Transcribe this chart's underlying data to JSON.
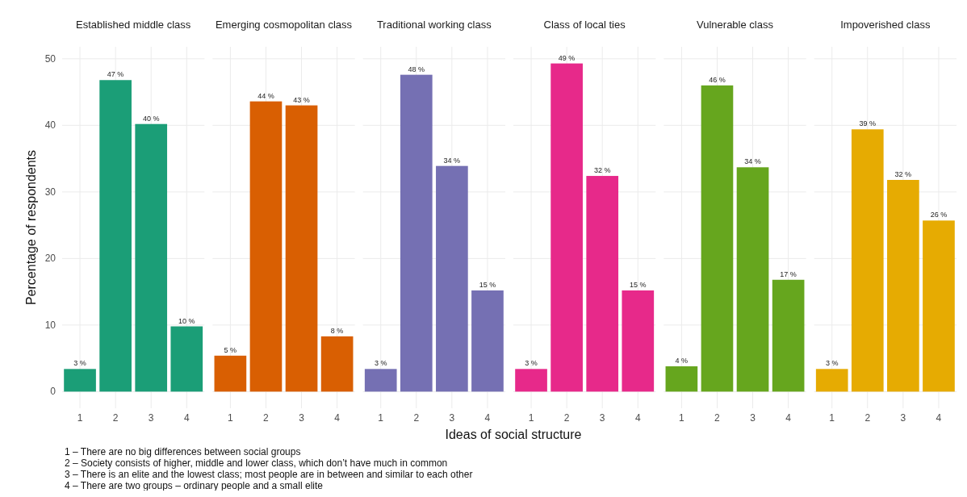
{
  "chart_data": [
    {
      "type": "bar",
      "title": "Established middle class",
      "categories": [
        "1",
        "2",
        "3",
        "4"
      ],
      "values": [
        3.4,
        46.8,
        40.2,
        9.8
      ],
      "value_labels": [
        "3 %",
        "47 %",
        "40 %",
        "10 %"
      ],
      "color": "#1b9e77",
      "ylim": [
        -2.5,
        51.8
      ],
      "yticks": [
        0,
        10,
        20,
        30,
        40,
        50
      ],
      "grid": true,
      "ylabel": "Percentage of respondents",
      "annotations": [
        "1 – There are no big differences between social groups",
        "2 – Society consists of higher, middle and lower class, which don’t have much in common",
        "3 – There is an elite and the lowest class; most people are in between and similar to each other",
        "4 – There are two groups – ordinary people and a small elite"
      ]
    },
    {
      "type": "bar",
      "title": "Emerging cosmopolitan class",
      "categories": [
        "1",
        "2",
        "3",
        "4"
      ],
      "values": [
        5.4,
        43.6,
        43.0,
        8.3
      ],
      "value_labels": [
        "5 %",
        "44 %",
        "43 %",
        "8 %"
      ],
      "color": "#d95f02",
      "ylim": [
        -2.5,
        51.8
      ],
      "yticks": [
        0,
        10,
        20,
        30,
        40,
        50
      ],
      "grid": true,
      "tick_labels": "x"
    },
    {
      "type": "bar",
      "title": "Traditional working class",
      "categories": [
        "1",
        "2",
        "3",
        "4"
      ],
      "values": [
        3.4,
        47.6,
        33.9,
        15.2
      ],
      "value_labels": [
        "3 %",
        "48 %",
        "34 %",
        "15 %"
      ],
      "color": "#7570b3",
      "ylim": [
        -2.5,
        51.8
      ],
      "yticks": [
        0,
        10,
        20,
        30,
        40,
        50
      ],
      "grid": true,
      "tick_labels": "x"
    },
    {
      "type": "bar",
      "title": "Class of local ties",
      "categories": [
        "1",
        "2",
        "3",
        "4"
      ],
      "values": [
        3.4,
        49.3,
        32.4,
        15.2
      ],
      "value_labels": [
        "3 %",
        "49 %",
        "32 %",
        "15 %"
      ],
      "color": "#e7298a",
      "ylim": [
        -2.5,
        51.8
      ],
      "yticks": [
        0,
        10,
        20,
        30,
        40,
        50
      ],
      "grid": true,
      "tick_labels": "x",
      "xlabel": "Ideas of social structure"
    },
    {
      "type": "bar",
      "title": "Vulnerable class",
      "categories": [
        "1",
        "2",
        "3",
        "4"
      ],
      "values": [
        3.8,
        46.0,
        33.7,
        16.8
      ],
      "value_labels": [
        "4 %",
        "46 %",
        "34 %",
        "17 %"
      ],
      "color": "#66a61e",
      "ylim": [
        -2.5,
        51.8
      ],
      "yticks": [
        0,
        10,
        20,
        30,
        40,
        50
      ],
      "grid": true,
      "tick_labels": "x"
    },
    {
      "type": "bar",
      "title": "Impoverished class",
      "categories": [
        "1",
        "2",
        "3",
        "4"
      ],
      "values": [
        3.4,
        39.4,
        31.8,
        25.7
      ],
      "value_labels": [
        "3 %",
        "39 %",
        "32 %",
        "26 %"
      ],
      "color": "#e6ab02",
      "ylim": [
        -2.5,
        51.8
      ],
      "yticks": [
        0,
        10,
        20,
        30,
        40,
        50
      ],
      "grid": true,
      "tick_labels": "x"
    }
  ]
}
